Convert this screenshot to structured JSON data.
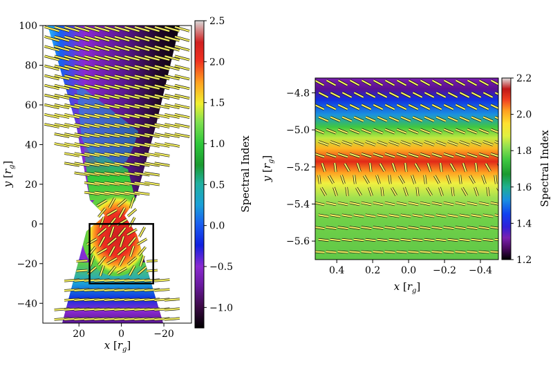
{
  "chart_data": [
    {
      "type": "heatmap",
      "panel": "left",
      "xlabel": "x [r_g]",
      "ylabel": "y [r_g]",
      "xlim": [
        37,
        -33
      ],
      "ylim": [
        -50,
        100
      ],
      "xticks": [
        20,
        0,
        -20
      ],
      "xtick_labels": [
        "20",
        "0",
        "−20"
      ],
      "yticks": [
        -40,
        -20,
        0,
        20,
        40,
        60,
        80,
        100
      ],
      "ytick_labels": [
        "−40",
        "−20",
        "0",
        "20",
        "40",
        "60",
        "80",
        "100"
      ],
      "colorbar": {
        "label": "Spectral Index",
        "range": [
          -1.25,
          2.5
        ],
        "ticks": [
          -1.0,
          -0.5,
          0.0,
          0.5,
          1.0,
          1.5,
          2.0,
          2.5
        ],
        "tick_labels": [
          "−1.0",
          "−0.5",
          "0.0",
          "0.5",
          "1.0",
          "1.5",
          "2.0",
          "2.5"
        ]
      },
      "zoom_box": {
        "x": [
          15,
          -15
        ],
        "y": [
          -30,
          0
        ]
      },
      "polarization_ticks": true,
      "grid": false
    },
    {
      "type": "heatmap",
      "panel": "right",
      "xlabel": "x [r_g]",
      "ylabel": "y [r_g]",
      "xlim": [
        0.52,
        -0.5
      ],
      "ylim": [
        -5.7,
        -4.72
      ],
      "xticks": [
        0.4,
        0.2,
        0.0,
        -0.2,
        -0.4
      ],
      "xtick_labels": [
        "0.4",
        "0.2",
        "0.0",
        "−0.2",
        "−0.4"
      ],
      "yticks": [
        -4.8,
        -5.0,
        -5.2,
        -5.4,
        -5.6
      ],
      "ytick_labels": [
        "−4.8",
        "−5.0",
        "−5.2",
        "−5.4",
        "−5.6"
      ],
      "colorbar": {
        "label": "Spectral Index",
        "range": [
          1.2,
          2.2
        ],
        "ticks": [
          1.2,
          1.4,
          1.6,
          1.8,
          2.0,
          2.2
        ],
        "tick_labels": [
          "1.2",
          "1.4",
          "1.6",
          "1.8",
          "2.0",
          "2.2"
        ]
      },
      "bands_by_y": [
        {
          "y": -4.72,
          "value": 1.25
        },
        {
          "y": -4.78,
          "value": 1.28
        },
        {
          "y": -4.84,
          "value": 1.4
        },
        {
          "y": -4.92,
          "value": 1.58
        },
        {
          "y": -4.99,
          "value": 1.72
        },
        {
          "y": -5.07,
          "value": 1.83
        },
        {
          "y": -5.12,
          "value": 1.95
        },
        {
          "y": -5.18,
          "value": 2.12
        },
        {
          "y": -5.24,
          "value": 1.98
        },
        {
          "y": -5.31,
          "value": 1.85
        },
        {
          "y": -5.38,
          "value": 1.78
        },
        {
          "y": -5.46,
          "value": 1.72
        },
        {
          "y": -5.55,
          "value": 1.65
        },
        {
          "y": -5.7,
          "value": 1.62
        }
      ],
      "polarization_ticks": true,
      "grid": false
    }
  ]
}
